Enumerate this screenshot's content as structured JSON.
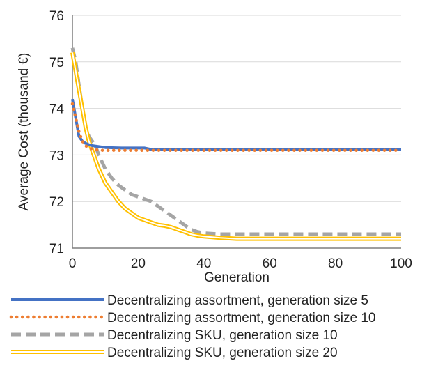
{
  "chart_data": {
    "type": "line",
    "title": "",
    "xlabel": "Generation",
    "ylabel": "Average Cost (thousand €)",
    "xlim": [
      0,
      100
    ],
    "ylim": [
      71,
      76
    ],
    "x_ticks": [
      "0",
      "20",
      "40",
      "60",
      "80",
      "100"
    ],
    "y_ticks": [
      "71",
      "72",
      "73",
      "74",
      "75",
      "76"
    ],
    "grid": "horizontal",
    "legend_position": "bottom",
    "series": [
      {
        "name": "Decentralizing assortment, generation size 5",
        "color": "#4472C4",
        "style": "solid",
        "points": [
          [
            0,
            74.2
          ],
          [
            1,
            73.8
          ],
          [
            2,
            73.4
          ],
          [
            3,
            73.3
          ],
          [
            4,
            73.25
          ],
          [
            5,
            73.22
          ],
          [
            6,
            73.2
          ],
          [
            8,
            73.18
          ],
          [
            10,
            73.16
          ],
          [
            15,
            73.15
          ],
          [
            22,
            73.15
          ],
          [
            24,
            73.12
          ],
          [
            30,
            73.12
          ],
          [
            50,
            73.12
          ],
          [
            100,
            73.12
          ]
        ]
      },
      {
        "name": "Decentralizing assortment, generation size 10",
        "color": "#ED7D31",
        "style": "dotted",
        "points": [
          [
            0,
            74.1
          ],
          [
            1,
            73.8
          ],
          [
            2,
            73.5
          ],
          [
            3,
            73.3
          ],
          [
            4,
            73.2
          ],
          [
            5,
            73.15
          ],
          [
            6,
            73.13
          ],
          [
            8,
            73.1
          ],
          [
            10,
            73.1
          ],
          [
            50,
            73.1
          ],
          [
            100,
            73.1
          ]
        ]
      },
      {
        "name": "Decentralizing SKU, generation size 10",
        "color": "#A5A5A5",
        "style": "dashed",
        "points": [
          [
            0,
            75.3
          ],
          [
            1,
            75.0
          ],
          [
            2,
            74.5
          ],
          [
            3,
            74.0
          ],
          [
            4,
            73.6
          ],
          [
            5,
            73.4
          ],
          [
            6,
            73.3
          ],
          [
            7,
            73.2
          ],
          [
            8,
            73.0
          ],
          [
            10,
            72.7
          ],
          [
            12,
            72.5
          ],
          [
            14,
            72.35
          ],
          [
            16,
            72.25
          ],
          [
            18,
            72.15
          ],
          [
            20,
            72.1
          ],
          [
            22,
            72.05
          ],
          [
            24,
            72.0
          ],
          [
            26,
            71.9
          ],
          [
            28,
            71.8
          ],
          [
            30,
            71.7
          ],
          [
            32,
            71.6
          ],
          [
            34,
            71.5
          ],
          [
            36,
            71.4
          ],
          [
            38,
            71.35
          ],
          [
            40,
            71.32
          ],
          [
            45,
            71.3
          ],
          [
            50,
            71.3
          ],
          [
            60,
            71.3
          ],
          [
            100,
            71.3
          ]
        ]
      },
      {
        "name": "Decentralizing SKU, generation size 20",
        "color": "#FFC000",
        "style": "double",
        "points": [
          [
            0,
            75.2
          ],
          [
            1,
            74.8
          ],
          [
            2,
            74.4
          ],
          [
            3,
            74.0
          ],
          [
            4,
            73.6
          ],
          [
            5,
            73.3
          ],
          [
            6,
            73.1
          ],
          [
            8,
            72.7
          ],
          [
            10,
            72.4
          ],
          [
            12,
            72.2
          ],
          [
            14,
            72.0
          ],
          [
            16,
            71.85
          ],
          [
            18,
            71.75
          ],
          [
            20,
            71.65
          ],
          [
            22,
            71.6
          ],
          [
            24,
            71.55
          ],
          [
            26,
            71.5
          ],
          [
            28,
            71.48
          ],
          [
            30,
            71.45
          ],
          [
            32,
            71.4
          ],
          [
            34,
            71.35
          ],
          [
            36,
            71.3
          ],
          [
            38,
            71.27
          ],
          [
            40,
            71.25
          ],
          [
            45,
            71.22
          ],
          [
            50,
            71.2
          ],
          [
            60,
            71.2
          ],
          [
            100,
            71.2
          ]
        ]
      }
    ]
  }
}
